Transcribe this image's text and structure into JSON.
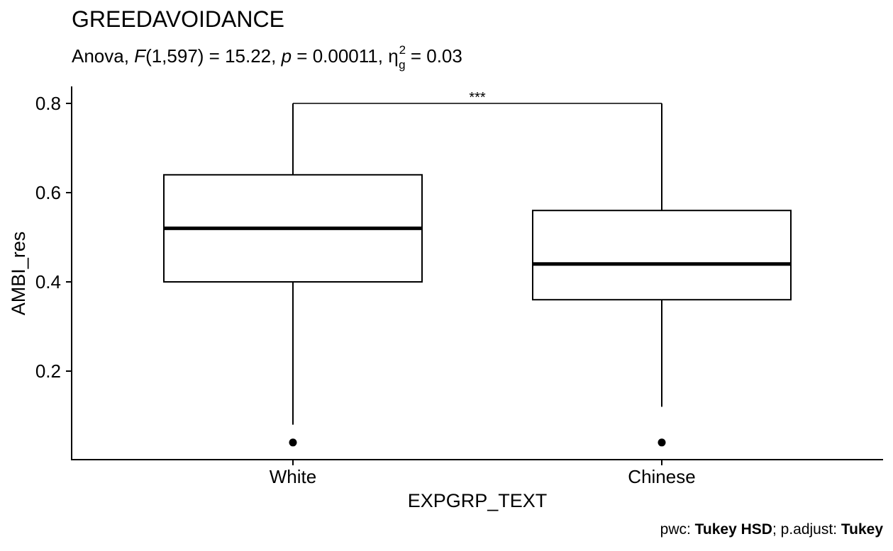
{
  "chart_data": {
    "type": "boxplot",
    "title": "GREEDAVOIDANCE",
    "subtitle": {
      "prefix": "Anova, ",
      "f_symbol": "F",
      "f_args": "(1,597) = 15.22, ",
      "p_symbol": "p",
      "p_value": " = 0.00011, ",
      "eta_symbol": "η",
      "eta_sub": "g",
      "eta_sup": "2",
      "eta_value": " = 0.03"
    },
    "xlabel": "EXPGRP_TEXT",
    "ylabel": "AMBI_res",
    "ylim": [
      0,
      0.83
    ],
    "yticks": [
      0.2,
      0.4,
      0.6,
      0.8
    ],
    "ytick_labels": [
      "0.2",
      "0.4",
      "0.6",
      "0.8"
    ],
    "categories": [
      "White",
      "Chinese"
    ],
    "boxes": [
      {
        "category": "White",
        "whisker_low": 0.08,
        "q1": 0.4,
        "median": 0.52,
        "q3": 0.64,
        "whisker_high": 0.8,
        "outliers": [
          0.04
        ]
      },
      {
        "category": "Chinese",
        "whisker_low": 0.12,
        "q1": 0.36,
        "median": 0.44,
        "q3": 0.56,
        "whisker_high": 0.8,
        "outliers": [
          0.04
        ]
      }
    ],
    "comparison": {
      "group1": "White",
      "group2": "Chinese",
      "y": 0.8,
      "label": "***"
    },
    "caption": {
      "pwc_label": "pwc: ",
      "pwc_method": "Tukey HSD",
      "adjust_label": "; p.adjust: ",
      "adjust_method": "Tukey"
    },
    "grid": false,
    "legend": "none"
  }
}
